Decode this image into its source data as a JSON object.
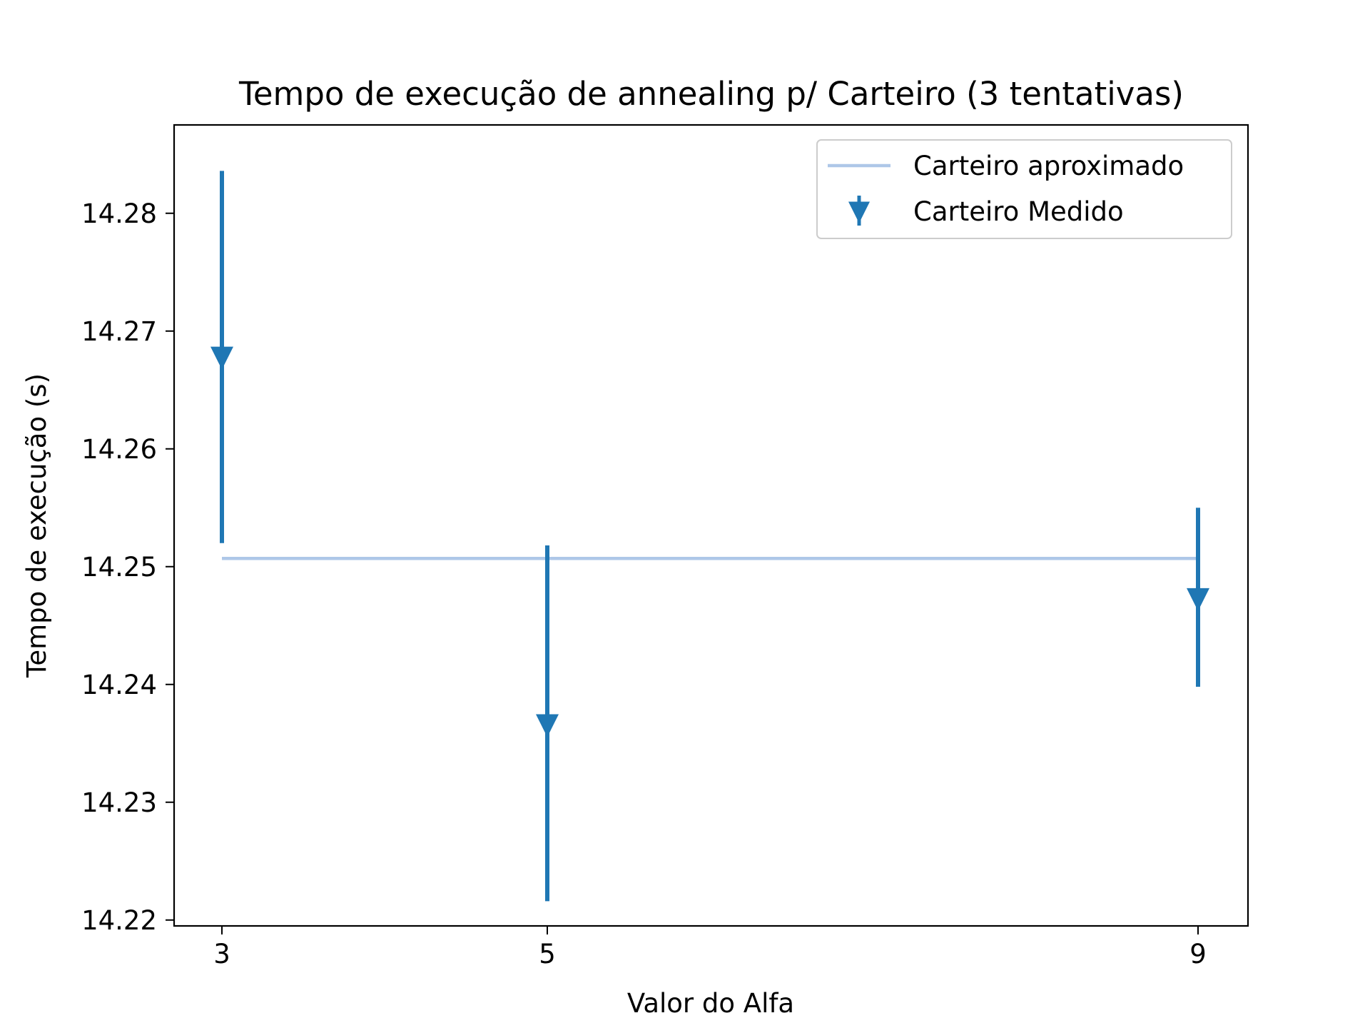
{
  "chart_data": {
    "type": "errorbar",
    "title": "Tempo de execução de annealing p/ Carteiro (3 tentativas)",
    "xlabel": "Valor do Alfa",
    "ylabel": "Tempo de execução (s)",
    "x": [
      3,
      5,
      9
    ],
    "xticks": [
      "3",
      "5",
      "9"
    ],
    "yticks": [
      "14.22",
      "14.23",
      "14.24",
      "14.25",
      "14.26",
      "14.27",
      "14.28"
    ],
    "ylim": [
      14.2195,
      14.2875
    ],
    "series": [
      {
        "name": "Carteiro aproximado",
        "kind": "line",
        "color": "#aec7e8",
        "values": [
          14.2507,
          14.2507,
          14.2507
        ]
      },
      {
        "name": "Carteiro Medido",
        "kind": "errorbar",
        "marker": "triangle-down",
        "color": "#1f77b4",
        "values": [
          14.2678,
          14.2366,
          14.2473
        ],
        "lower": [
          14.252,
          14.2216,
          14.2398
        ],
        "upper": [
          14.2836,
          14.2518,
          14.255
        ]
      }
    ],
    "legend": "top-right",
    "grid": false
  }
}
